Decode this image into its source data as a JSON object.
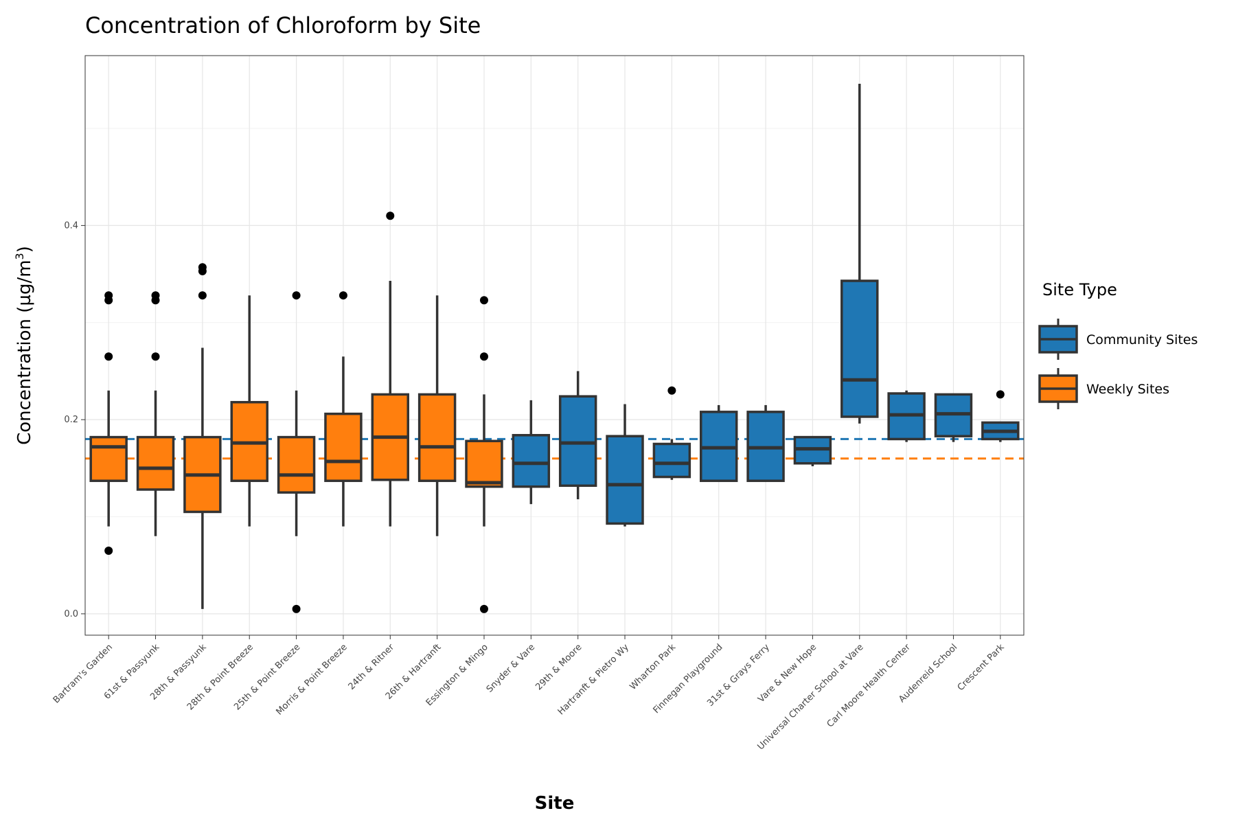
{
  "chart_data": {
    "type": "box",
    "title": "Concentration of Chloroform by Site",
    "xlabel": "Site",
    "ylabel": "Concentration (µg/m",
    "ylabel_superscript": "3",
    "ylabel_suffix": ")",
    "ylim": [
      -0.022,
      0.575
    ],
    "yticks": [
      0.0,
      0.2,
      0.4
    ],
    "ytick_labels": [
      "0.0",
      "0.2",
      "0.4"
    ],
    "grid": true,
    "legend": {
      "title": "Site Type",
      "placement": "right",
      "entries": [
        {
          "label": "Community Sites",
          "color": "#1f77b4"
        },
        {
          "label": "Weekly Sites",
          "color": "#ff7f0e"
        }
      ]
    },
    "reference_lines": [
      {
        "series": "Community Sites",
        "y": 0.18,
        "color": "#1f77b4",
        "style": "dashed"
      },
      {
        "series": "Weekly Sites",
        "y": 0.16,
        "color": "#ff7f0e",
        "style": "dashed"
      }
    ],
    "colors": {
      "community": "#1f77b4",
      "weekly": "#ff7f0e",
      "outline": "#333333",
      "outlier": "#000000",
      "grid": "#e6e6e6"
    },
    "boxes": [
      {
        "site": "Bartram's Garden",
        "type": "weekly",
        "whisker_low": 0.09,
        "q1": 0.137,
        "median": 0.172,
        "q3": 0.182,
        "whisker_high": 0.23,
        "outliers": [
          0.065,
          0.265,
          0.323,
          0.328
        ]
      },
      {
        "site": "61st & Passyunk",
        "type": "weekly",
        "whisker_low": 0.08,
        "q1": 0.128,
        "median": 0.15,
        "q3": 0.182,
        "whisker_high": 0.23,
        "outliers": [
          0.265,
          0.323,
          0.328
        ]
      },
      {
        "site": "28th & Passyunk",
        "type": "weekly",
        "whisker_low": 0.005,
        "q1": 0.105,
        "median": 0.143,
        "q3": 0.182,
        "whisker_high": 0.274,
        "outliers": [
          0.328,
          0.353,
          0.357
        ]
      },
      {
        "site": "28th & Point Breeze",
        "type": "weekly",
        "whisker_low": 0.09,
        "q1": 0.137,
        "median": 0.176,
        "q3": 0.218,
        "whisker_high": 0.328,
        "outliers": []
      },
      {
        "site": "25th & Point Breeze",
        "type": "weekly",
        "whisker_low": 0.08,
        "q1": 0.125,
        "median": 0.143,
        "q3": 0.182,
        "whisker_high": 0.23,
        "outliers": [
          0.005,
          0.328
        ]
      },
      {
        "site": "Morris & Point Breeze",
        "type": "weekly",
        "whisker_low": 0.09,
        "q1": 0.137,
        "median": 0.157,
        "q3": 0.206,
        "whisker_high": 0.265,
        "outliers": [
          0.328
        ]
      },
      {
        "site": "24th & Ritner",
        "type": "weekly",
        "whisker_low": 0.09,
        "q1": 0.138,
        "median": 0.182,
        "q3": 0.226,
        "whisker_high": 0.343,
        "outliers": [
          0.41
        ]
      },
      {
        "site": "26th & Hartranft",
        "type": "weekly",
        "whisker_low": 0.08,
        "q1": 0.137,
        "median": 0.172,
        "q3": 0.226,
        "whisker_high": 0.328,
        "outliers": []
      },
      {
        "site": "Essington & Mingo",
        "type": "weekly",
        "whisker_low": 0.09,
        "q1": 0.131,
        "median": 0.135,
        "q3": 0.178,
        "whisker_high": 0.226,
        "outliers": [
          0.005,
          0.265,
          0.323
        ]
      },
      {
        "site": "Snyder & Vare",
        "type": "community",
        "whisker_low": 0.113,
        "q1": 0.131,
        "median": 0.155,
        "q3": 0.184,
        "whisker_high": 0.22,
        "outliers": []
      },
      {
        "site": "29th & Moore",
        "type": "community",
        "whisker_low": 0.118,
        "q1": 0.132,
        "median": 0.176,
        "q3": 0.224,
        "whisker_high": 0.25,
        "outliers": []
      },
      {
        "site": "Hartranft & Pietro Wy",
        "type": "community",
        "whisker_low": 0.09,
        "q1": 0.093,
        "median": 0.133,
        "q3": 0.183,
        "whisker_high": 0.216,
        "outliers": []
      },
      {
        "site": "Wharton Park",
        "type": "community",
        "whisker_low": 0.138,
        "q1": 0.141,
        "median": 0.155,
        "q3": 0.175,
        "whisker_high": 0.18,
        "outliers": [
          0.23
        ]
      },
      {
        "site": "Finnegan Playground",
        "type": "community",
        "whisker_low": 0.137,
        "q1": 0.137,
        "median": 0.171,
        "q3": 0.208,
        "whisker_high": 0.215,
        "outliers": []
      },
      {
        "site": "31st & Grays Ferry",
        "type": "community",
        "whisker_low": 0.137,
        "q1": 0.137,
        "median": 0.171,
        "q3": 0.208,
        "whisker_high": 0.215,
        "outliers": []
      },
      {
        "site": "Vare & New Hope",
        "type": "community",
        "whisker_low": 0.152,
        "q1": 0.155,
        "median": 0.17,
        "q3": 0.182,
        "whisker_high": 0.182,
        "outliers": []
      },
      {
        "site": "Universal Charter School at Vare",
        "type": "community",
        "whisker_low": 0.196,
        "q1": 0.203,
        "median": 0.241,
        "q3": 0.343,
        "whisker_high": 0.546,
        "outliers": []
      },
      {
        "site": "Carl Moore Health Center",
        "type": "community",
        "whisker_low": 0.177,
        "q1": 0.18,
        "median": 0.205,
        "q3": 0.227,
        "whisker_high": 0.23,
        "outliers": []
      },
      {
        "site": "Audenreid School",
        "type": "community",
        "whisker_low": 0.177,
        "q1": 0.183,
        "median": 0.206,
        "q3": 0.226,
        "whisker_high": 0.226,
        "outliers": []
      },
      {
        "site": "Crescent Park",
        "type": "community",
        "whisker_low": 0.177,
        "q1": 0.18,
        "median": 0.188,
        "q3": 0.197,
        "whisker_high": 0.197,
        "outliers": [
          0.226
        ]
      }
    ]
  }
}
